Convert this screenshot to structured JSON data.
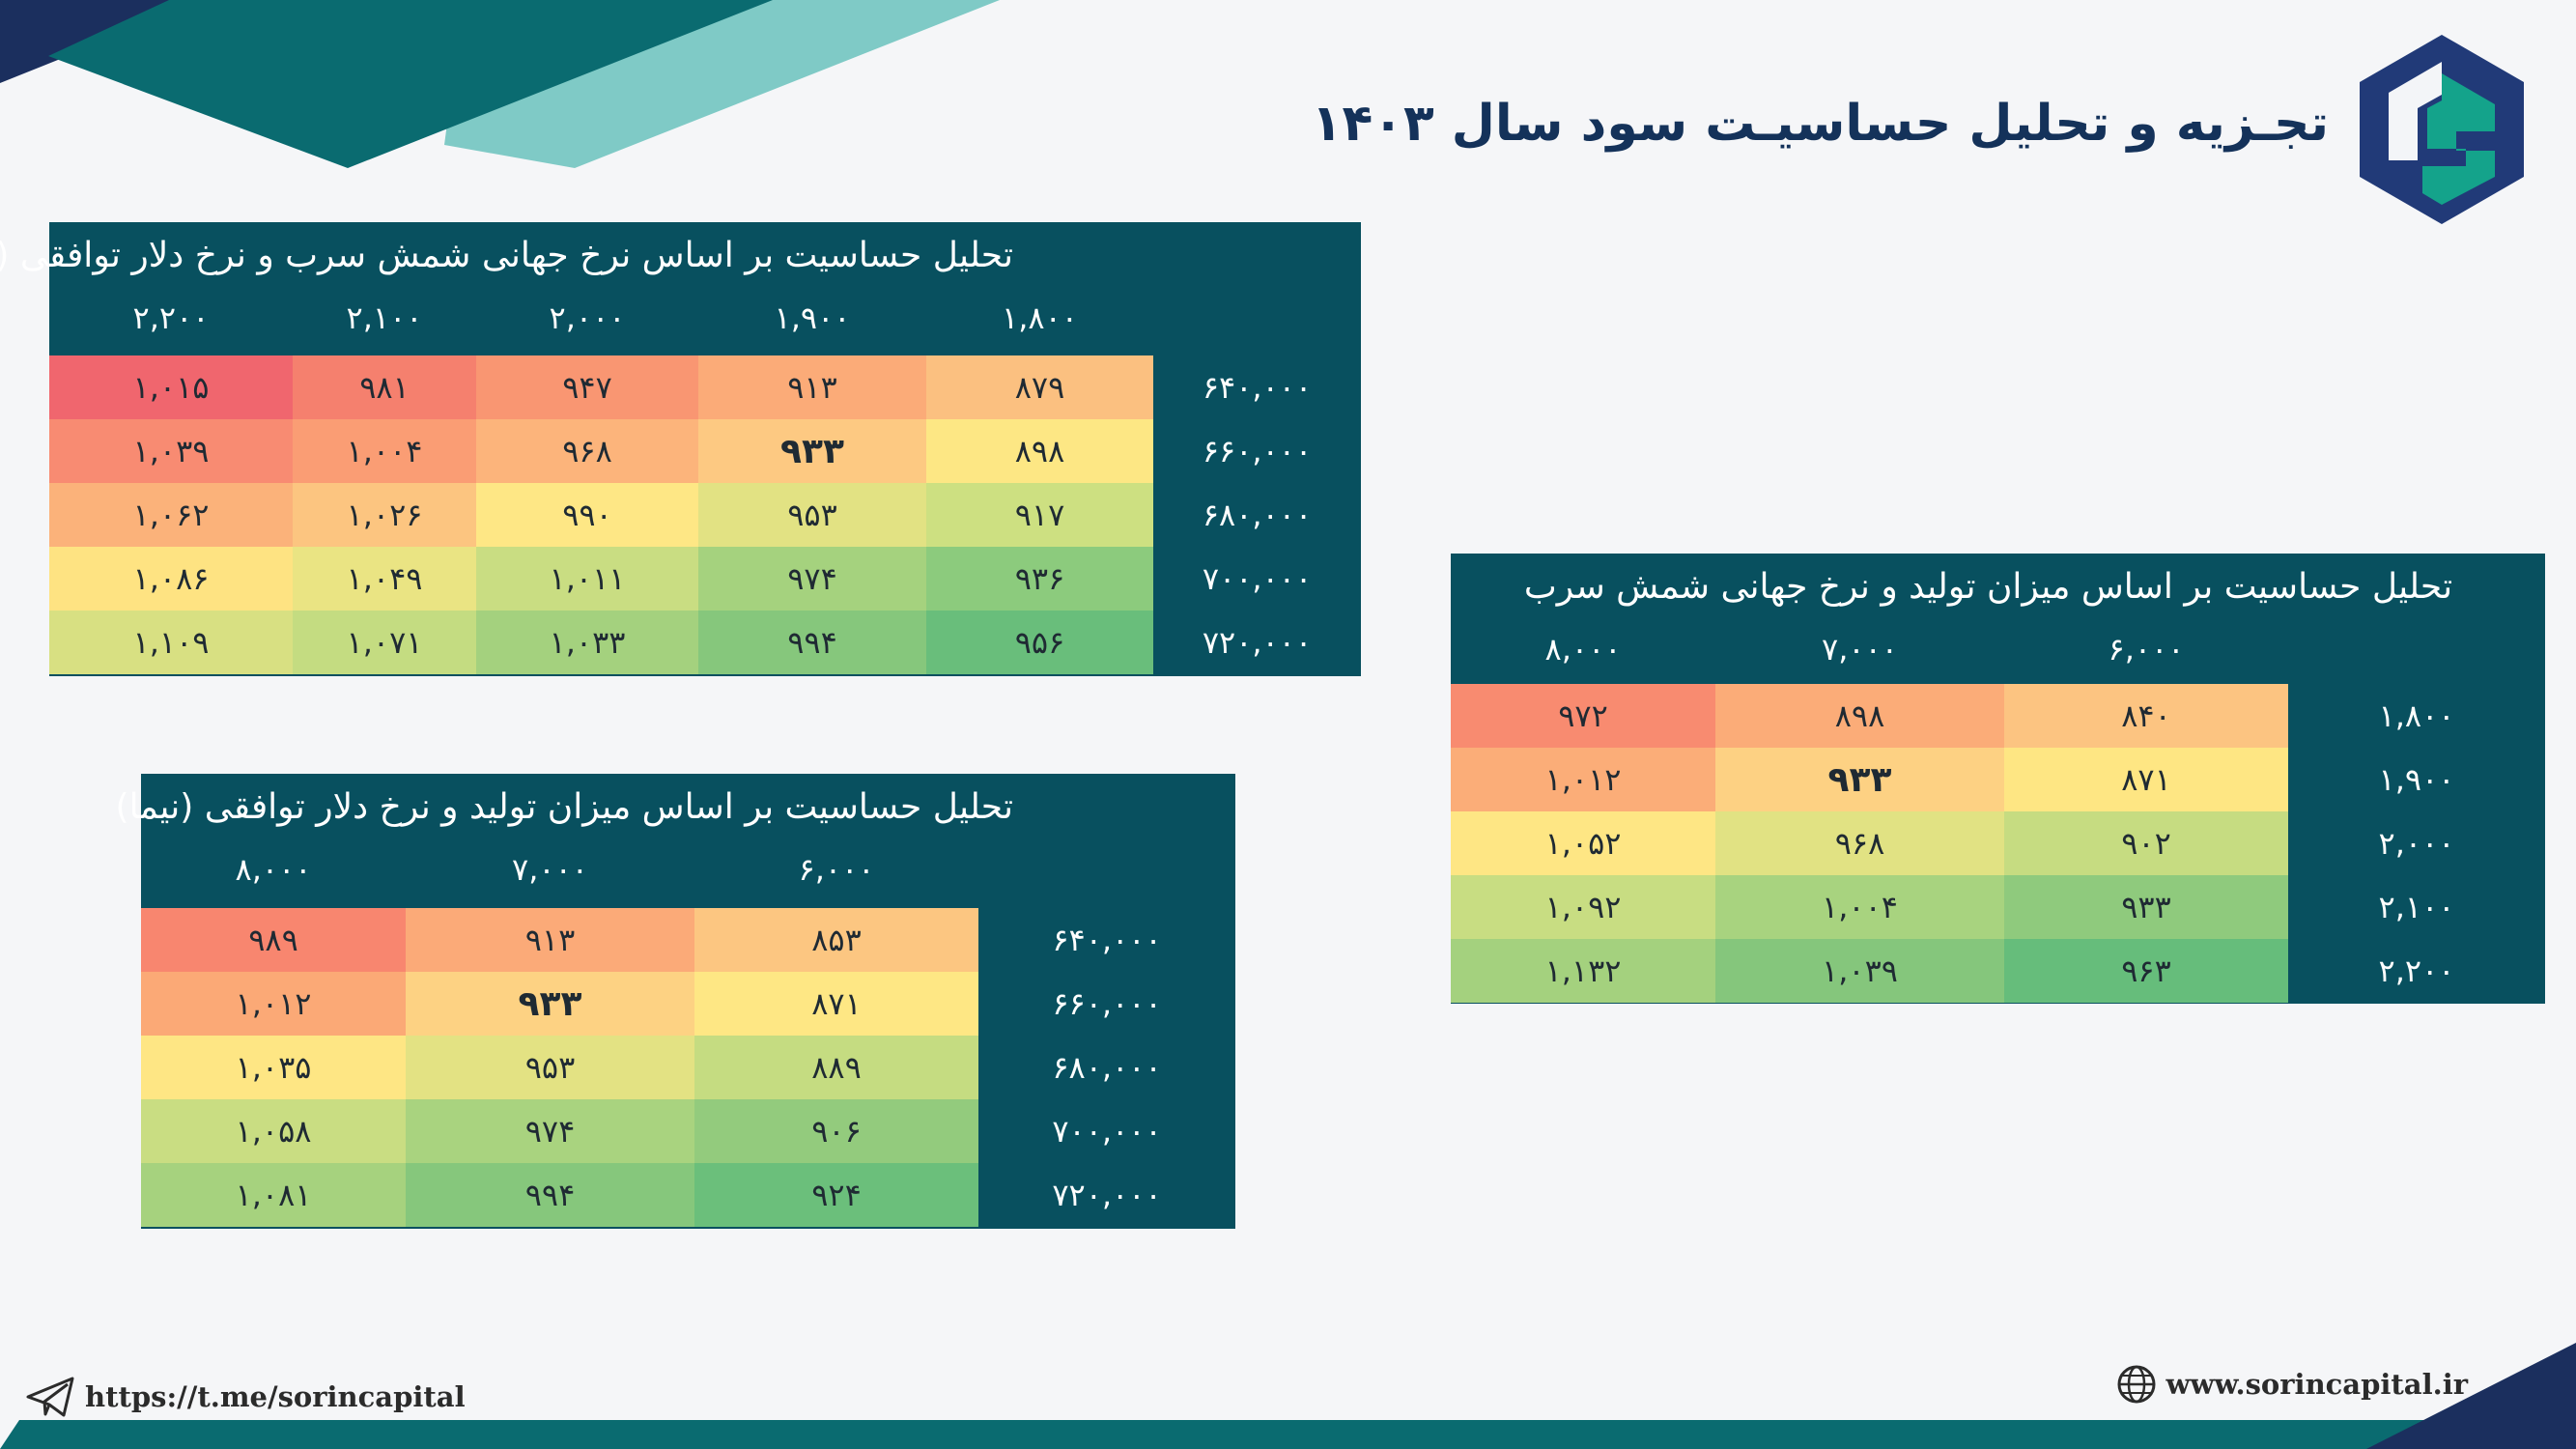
{
  "header": {
    "title": "تجـزیه و تحلیل حساسیـت سود سال ۱۴۰۳",
    "logo": "sorin-capital-logo"
  },
  "tables": [
    {
      "title": "تحلیل حساسیت بر اساس نرخ جهانی شمش سرب و نرخ دلار توافقی (نیما)",
      "columns": [
        "۲,۲۰۰",
        "۲,۱۰۰",
        "۲,۰۰۰",
        "۱,۹۰۰",
        "۱,۸۰۰"
      ],
      "rows": [
        {
          "label": "۶۴۰,۰۰۰",
          "cells": [
            {
              "v": "۱,۰۱۵",
              "c": "#f0666e"
            },
            {
              "v": "۹۸۱",
              "c": "#f5806e"
            },
            {
              "v": "۹۴۷",
              "c": "#f99672"
            },
            {
              "v": "۹۱۳",
              "c": "#fbab78"
            },
            {
              "v": "۸۷۹",
              "c": "#fbc080"
            }
          ]
        },
        {
          "label": "۶۶۰,۰۰۰",
          "cells": [
            {
              "v": "۱,۰۳۹",
              "c": "#f88b72"
            },
            {
              "v": "۱,۰۰۴",
              "c": "#fa9d74"
            },
            {
              "v": "۹۶۸",
              "c": "#fcb47b"
            },
            {
              "v": "۹۳۳",
              "c": "#fdc982",
              "bold": true
            },
            {
              "v": "۸۹۸",
              "c": "#fde784"
            }
          ]
        },
        {
          "label": "۶۸۰,۰۰۰",
          "cells": [
            {
              "v": "۱,۰۶۲",
              "c": "#fbb27a"
            },
            {
              "v": "۱,۰۲۶",
              "c": "#fcc580"
            },
            {
              "v": "۹۹۰",
              "c": "#fee785"
            },
            {
              "v": "۹۵۳",
              "c": "#e2e283"
            },
            {
              "v": "۹۱۷",
              "c": "#cde081"
            }
          ]
        },
        {
          "label": "۷۰۰,۰۰۰",
          "cells": [
            {
              "v": "۱,۰۸۶",
              "c": "#fee382"
            },
            {
              "v": "۱,۰۴۹",
              "c": "#eae483"
            },
            {
              "v": "۱,۰۱۱",
              "c": "#c9dd82"
            },
            {
              "v": "۹۷۴",
              "c": "#a5d27e"
            },
            {
              "v": "۹۳۶",
              "c": "#8ccb7d"
            }
          ]
        },
        {
          "label": "۷۲۰,۰۰۰",
          "cells": [
            {
              "v": "۱,۱۰۹",
              "c": "#d8e082"
            },
            {
              "v": "۱,۰۷۱",
              "c": "#c4dc81"
            },
            {
              "v": "۱,۰۳۳",
              "c": "#a4d17e"
            },
            {
              "v": "۹۹۴",
              "c": "#86c77c"
            },
            {
              "v": "۹۵۶",
              "c": "#69be7b"
            }
          ]
        }
      ]
    },
    {
      "title": "تحلیل حساسیت بر اساس میزان تولید و نرخ دلار توافقی (نیما)",
      "columns": [
        "۸,۰۰۰",
        "۷,۰۰۰",
        "۶,۰۰۰"
      ],
      "rows": [
        {
          "label": "۶۴۰,۰۰۰",
          "cells": [
            {
              "v": "۹۸۹",
              "c": "#f8866f"
            },
            {
              "v": "۹۱۳",
              "c": "#fbaa78"
            },
            {
              "v": "۸۵۳",
              "c": "#fcc681"
            }
          ]
        },
        {
          "label": "۶۶۰,۰۰۰",
          "cells": [
            {
              "v": "۱,۰۱۲",
              "c": "#fba976"
            },
            {
              "v": "۹۳۳",
              "c": "#fdd283",
              "bold": true
            },
            {
              "v": "۸۷۱",
              "c": "#fee784"
            }
          ]
        },
        {
          "label": "۶۸۰,۰۰۰",
          "cells": [
            {
              "v": "۱,۰۳۵",
              "c": "#fee684"
            },
            {
              "v": "۹۵۳",
              "c": "#e3e283"
            },
            {
              "v": "۸۸۹",
              "c": "#c5dc81"
            }
          ]
        },
        {
          "label": "۷۰۰,۰۰۰",
          "cells": [
            {
              "v": "۱,۰۵۸",
              "c": "#c9dd82"
            },
            {
              "v": "۹۷۴",
              "c": "#a9d37f"
            },
            {
              "v": "۹۰۶",
              "c": "#93cb7d"
            }
          ]
        },
        {
          "label": "۷۲۰,۰۰۰",
          "cells": [
            {
              "v": "۱,۰۸۱",
              "c": "#a6d27e"
            },
            {
              "v": "۹۹۴",
              "c": "#86c77c"
            },
            {
              "v": "۹۲۴",
              "c": "#6bbf7b"
            }
          ]
        }
      ]
    },
    {
      "title": "تحلیل حساسیت بر اساس میزان تولید و نرخ جهانی شمش سرب",
      "columns": [
        "۸,۰۰۰",
        "۷,۰۰۰",
        "۶,۰۰۰"
      ],
      "rows": [
        {
          "label": "۱,۸۰۰",
          "cells": [
            {
              "v": "۹۷۲",
              "c": "#f88b70"
            },
            {
              "v": "۸۹۸",
              "c": "#fbac78"
            },
            {
              "v": "۸۴۰",
              "c": "#fcc481"
            }
          ]
        },
        {
          "label": "۱,۹۰۰",
          "cells": [
            {
              "v": "۱,۰۱۲",
              "c": "#fbad78"
            },
            {
              "v": "۹۳۳",
              "c": "#fdd183",
              "bold": true
            },
            {
              "v": "۸۷۱",
              "c": "#fee683"
            }
          ]
        },
        {
          "label": "۲,۰۰۰",
          "cells": [
            {
              "v": "۱,۰۵۲",
              "c": "#fee684"
            },
            {
              "v": "۹۶۸",
              "c": "#e1e283"
            },
            {
              "v": "۹۰۲",
              "c": "#c6dc81"
            }
          ]
        },
        {
          "label": "۲,۱۰۰",
          "cells": [
            {
              "v": "۱,۰۹۲",
              "c": "#c8dd82"
            },
            {
              "v": "۱,۰۰۴",
              "c": "#a8d37f"
            },
            {
              "v": "۹۳۳",
              "c": "#8fca7d"
            }
          ]
        },
        {
          "label": "۲,۲۰۰",
          "cells": [
            {
              "v": "۱,۱۳۲",
              "c": "#a4d17e"
            },
            {
              "v": "۱,۰۳۹",
              "c": "#85c67c"
            },
            {
              "v": "۹۶۳",
              "c": "#66bd7b"
            }
          ]
        }
      ]
    }
  ],
  "footer": {
    "telegram": "https://t.me/sorincapital",
    "website": "www.sorincapital.ir",
    "telegram_icon": "paper-plane-icon",
    "website_icon": "globe-icon"
  },
  "colors": {
    "panel": "#08505f",
    "title": "#14325a",
    "brand_navy": "#213a78",
    "brand_teal": "#14a38b"
  }
}
